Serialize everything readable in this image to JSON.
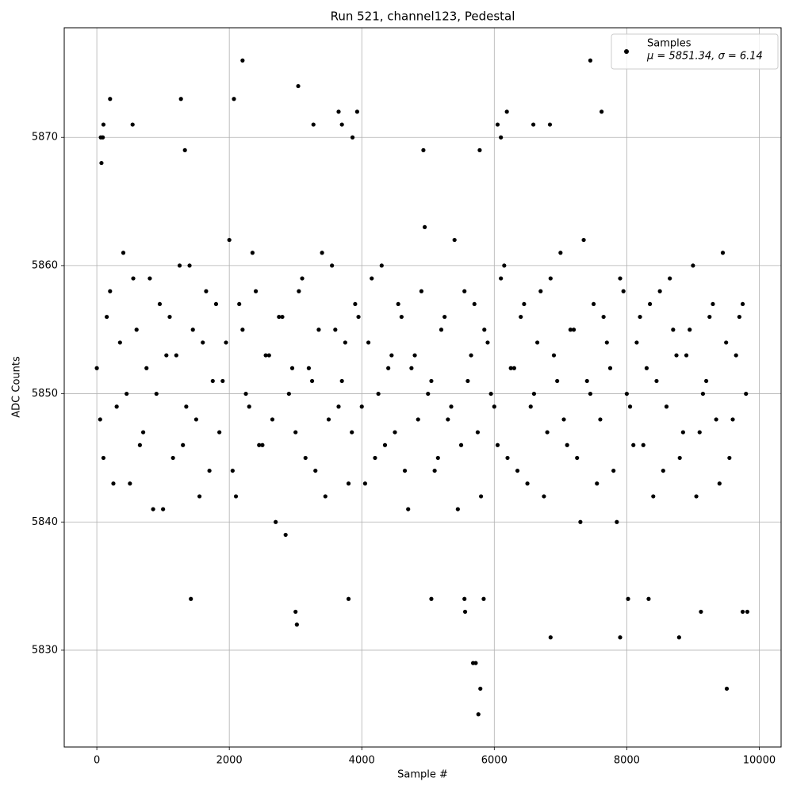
{
  "chart_data": {
    "type": "scatter",
    "title": "Run 521, channel123, Pedestal",
    "x_label": "Sample #",
    "y_label": "ADC Counts",
    "legend_note": "μ = 5851.34, σ = 6.14",
    "legend_position": "upper right",
    "grid": true,
    "xlim": [
      -492,
      10330
    ],
    "ylim": [
      5822.45,
      5878.55
    ],
    "xticks": [
      0,
      2000,
      4000,
      6000,
      8000,
      10000
    ],
    "yticks": [
      5830,
      5840,
      5850,
      5860,
      5870
    ],
    "x": [
      0,
      100,
      200,
      300,
      400,
      500,
      600,
      700,
      800,
      900,
      1000,
      1100,
      1200,
      1300,
      1400,
      1500,
      1600,
      1700,
      1800,
      1900,
      2000,
      2100,
      2200,
      2300,
      2400,
      2500,
      2600,
      2700,
      2800,
      2900,
      3000,
      3100,
      3200,
      3300,
      3400,
      3500,
      3600,
      3700,
      3800,
      3900,
      4000,
      4100,
      4200,
      4300,
      4400,
      4500,
      4600,
      4700,
      4800,
      4900,
      5000,
      5100,
      5200,
      5300,
      5400,
      5500,
      5600,
      5700,
      5800,
      5900,
      6000,
      6100,
      6200,
      6300,
      6400,
      6500,
      6600,
      6700,
      6800,
      6900,
      7000,
      7100,
      7200,
      7300,
      7400,
      7500,
      7600,
      7700,
      7800,
      7900,
      8000,
      8100,
      8200,
      8300,
      8400,
      8500,
      8600,
      8700,
      8800,
      8900,
      9000,
      9100,
      9200,
      9300,
      9400,
      9500,
      9600,
      9700,
      9800,
      50,
      150,
      250,
      350,
      450,
      550,
      650,
      750,
      850,
      950,
      1050,
      1150,
      1250,
      1350,
      1450,
      1550,
      1650,
      1750,
      1850,
      1950,
      2050,
      2150,
      2250,
      2350,
      2450,
      2550,
      2650,
      2750,
      2850,
      2950,
      3050,
      3150,
      3250,
      3350,
      3450,
      3550,
      3650,
      3750,
      3850,
      3950,
      4050,
      4150,
      4250,
      4350,
      4450,
      4550,
      4650,
      4750,
      4850,
      4950,
      5050,
      5150,
      5250,
      5350,
      5450,
      5550,
      5650,
      5750,
      5850,
      5950,
      6050,
      6150,
      6250,
      6350,
      6450,
      6550,
      6650,
      6750,
      6850,
      6950,
      7050,
      7150,
      7250,
      7350,
      7450,
      7550,
      7650,
      7750,
      7850,
      7950,
      8050,
      8150,
      8250,
      8350,
      8450,
      8550,
      8650,
      8750,
      8850,
      8950,
      9050,
      9150,
      9250,
      9350,
      9450,
      9550,
      9650,
      9750,
      60,
      70,
      90,
      100,
      200,
      540,
      1270,
      1330,
      2070,
      2200,
      3040,
      3270,
      3650,
      3700,
      3860,
      3930,
      4930,
      5780,
      6050,
      6100,
      6190,
      6590,
      6840,
      7450,
      7620,
      1420,
      3000,
      3020,
      3800,
      5050,
      5550,
      5560,
      5680,
      5720,
      5760,
      5790,
      5840,
      6850,
      7900,
      8020,
      8330,
      8790,
      9120,
      9510,
      9750,
      9820
    ],
    "series": [
      {
        "name": "Samples",
        "color": "#000000",
        "values": [
          5852,
          5845,
          5858,
          5849,
          5861,
          5843,
          5855,
          5847,
          5859,
          5850,
          5841,
          5856,
          5853,
          5846,
          5860,
          5848,
          5854,
          5844,
          5857,
          5851,
          5862,
          5842,
          5855,
          5849,
          5858,
          5846,
          5853,
          5840,
          5856,
          5850,
          5847,
          5859,
          5852,
          5844,
          5861,
          5848,
          5855,
          5851,
          5843,
          5857,
          5849,
          5854,
          5845,
          5860,
          5852,
          5847,
          5856,
          5841,
          5853,
          5858,
          5850,
          5844,
          5855,
          5848,
          5862,
          5846,
          5851,
          5857,
          5842,
          5854,
          5849,
          5859,
          5845,
          5852,
          5856,
          5843,
          5850,
          5858,
          5847,
          5853,
          5861,
          5846,
          5855,
          5840,
          5851,
          5857,
          5848,
          5854,
          5844,
          5859,
          5850,
          5846,
          5856,
          5852,
          5842,
          5858,
          5849,
          5855,
          5845,
          5853,
          5860,
          5847,
          5851,
          5857,
          5843,
          5854,
          5848,
          5856,
          5850,
          5848,
          5856,
          5843,
          5854,
          5850,
          5859,
          5846,
          5852,
          5841,
          5857,
          5853,
          5845,
          5860,
          5849,
          5855,
          5842,
          5858,
          5851,
          5847,
          5854,
          5844,
          5857,
          5850,
          5861,
          5846,
          5853,
          5848,
          5856,
          5839,
          5852,
          5858,
          5845,
          5851,
          5855,
          5842,
          5860,
          5849,
          5854,
          5847,
          5856,
          5843,
          5859,
          5850,
          5846,
          5853,
          5857,
          5844,
          5852,
          5848,
          5863,
          5851,
          5845,
          5856,
          5849,
          5841,
          5858,
          5853,
          5847,
          5855,
          5850,
          5846,
          5860,
          5852,
          5844,
          5857,
          5849,
          5854,
          5842,
          5859,
          5851,
          5848,
          5855,
          5845,
          5862,
          5850,
          5843,
          5856,
          5852,
          5840,
          5858,
          5849,
          5854,
          5846,
          5857,
          5851,
          5844,
          5859,
          5853,
          5847,
          5855,
          5842,
          5850,
          5856,
          5848,
          5861,
          5845,
          5853,
          5857,
          5870,
          5868,
          5870,
          5871,
          5873,
          5871,
          5873,
          5869,
          5873,
          5876,
          5874,
          5871,
          5872,
          5871,
          5870,
          5872,
          5869,
          5869,
          5871,
          5870,
          5872,
          5871,
          5871,
          5876,
          5872,
          5834,
          5833,
          5832,
          5834,
          5834,
          5834,
          5833,
          5829,
          5829,
          5825,
          5827,
          5834,
          5831,
          5831,
          5834,
          5834,
          5831,
          5833,
          5827,
          5833,
          5833
        ]
      }
    ]
  }
}
